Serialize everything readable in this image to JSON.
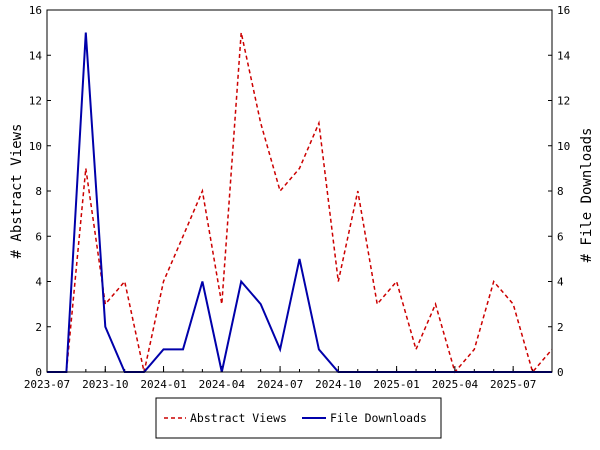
{
  "chart_data": {
    "type": "line",
    "title": "",
    "xlabel": "",
    "ylabel": "# Abstract Views",
    "y2label": "# File Downloads",
    "ylim": [
      0,
      16
    ],
    "y2lim": [
      0,
      16
    ],
    "yticks": [
      0,
      2,
      4,
      6,
      8,
      10,
      12,
      14,
      16
    ],
    "xlim": [
      "2023-07",
      "2025-09"
    ],
    "xtick_labels": [
      "2023-07",
      "2023-10",
      "2024-01",
      "2024-04",
      "2024-07",
      "2024-10",
      "2025-01",
      "2025-04",
      "2025-07"
    ],
    "x": [
      "2023-07",
      "2023-08",
      "2023-09",
      "2023-10",
      "2023-11",
      "2023-12",
      "2024-01",
      "2024-02",
      "2024-03",
      "2024-04",
      "2024-05",
      "2024-06",
      "2024-07",
      "2024-08",
      "2024-09",
      "2024-10",
      "2024-11",
      "2024-12",
      "2025-01",
      "2025-02",
      "2025-03",
      "2025-04",
      "2025-05",
      "2025-06",
      "2025-07",
      "2025-08",
      "2025-09"
    ],
    "series": [
      {
        "name": "Abstract Views",
        "axis": "left",
        "color": "#cc0000",
        "style": "dashed",
        "values": [
          0,
          0,
          9,
          3,
          4,
          0,
          4,
          6,
          8,
          3,
          15,
          11,
          8,
          9,
          11,
          4,
          8,
          3,
          4,
          1,
          3,
          0,
          1,
          4,
          3,
          0,
          1
        ]
      },
      {
        "name": "File Downloads",
        "axis": "right",
        "color": "#0000aa",
        "style": "solid",
        "values": [
          0,
          0,
          15,
          2,
          0,
          0,
          1,
          1,
          4,
          0,
          4,
          3,
          1,
          5,
          1,
          0,
          0,
          0,
          0,
          0,
          0,
          0,
          0,
          0,
          0,
          0,
          0
        ]
      }
    ],
    "legend": {
      "position": "bottom-center"
    },
    "grid": false
  }
}
